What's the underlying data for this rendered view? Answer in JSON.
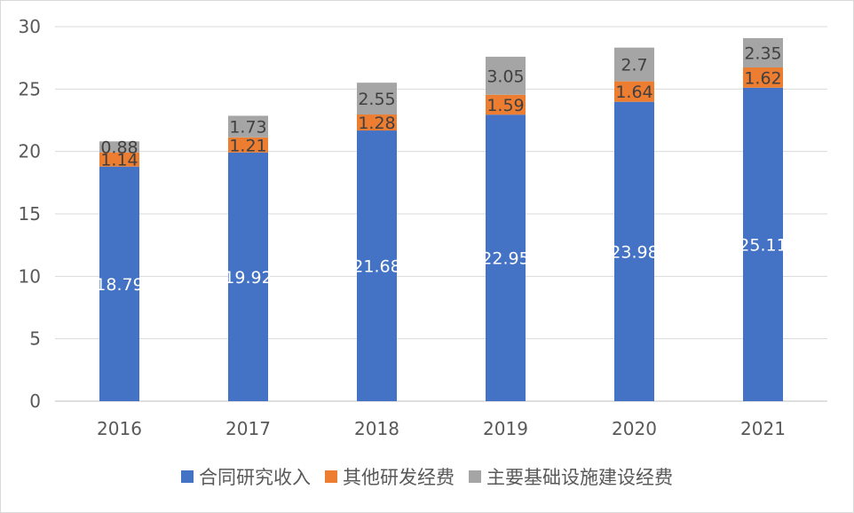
{
  "chart_data": {
    "type": "bar",
    "stacked": true,
    "categories": [
      "2016",
      "2017",
      "2018",
      "2019",
      "2020",
      "2021"
    ],
    "series": [
      {
        "name": "合同研究收入",
        "color": "#4472c4",
        "label_color": "#ffffff",
        "values": [
          18.79,
          19.92,
          21.68,
          22.95,
          23.98,
          25.11
        ]
      },
      {
        "name": "其他研发经费",
        "color": "#ed7d31",
        "label_color": "#404040",
        "values": [
          1.14,
          1.21,
          1.28,
          1.59,
          1.64,
          1.62
        ]
      },
      {
        "name": "主要基础设施建设经费",
        "color": "#a5a5a5",
        "label_color": "#404040",
        "values": [
          0.88,
          1.73,
          2.55,
          3.05,
          2.7,
          2.35
        ]
      }
    ],
    "ylim": [
      0,
      30
    ],
    "yticks": [
      "0",
      "5",
      "10",
      "15",
      "20",
      "25",
      "30"
    ],
    "grid": true,
    "legend_position": "bottom",
    "title": "",
    "xlabel": "",
    "ylabel": ""
  }
}
